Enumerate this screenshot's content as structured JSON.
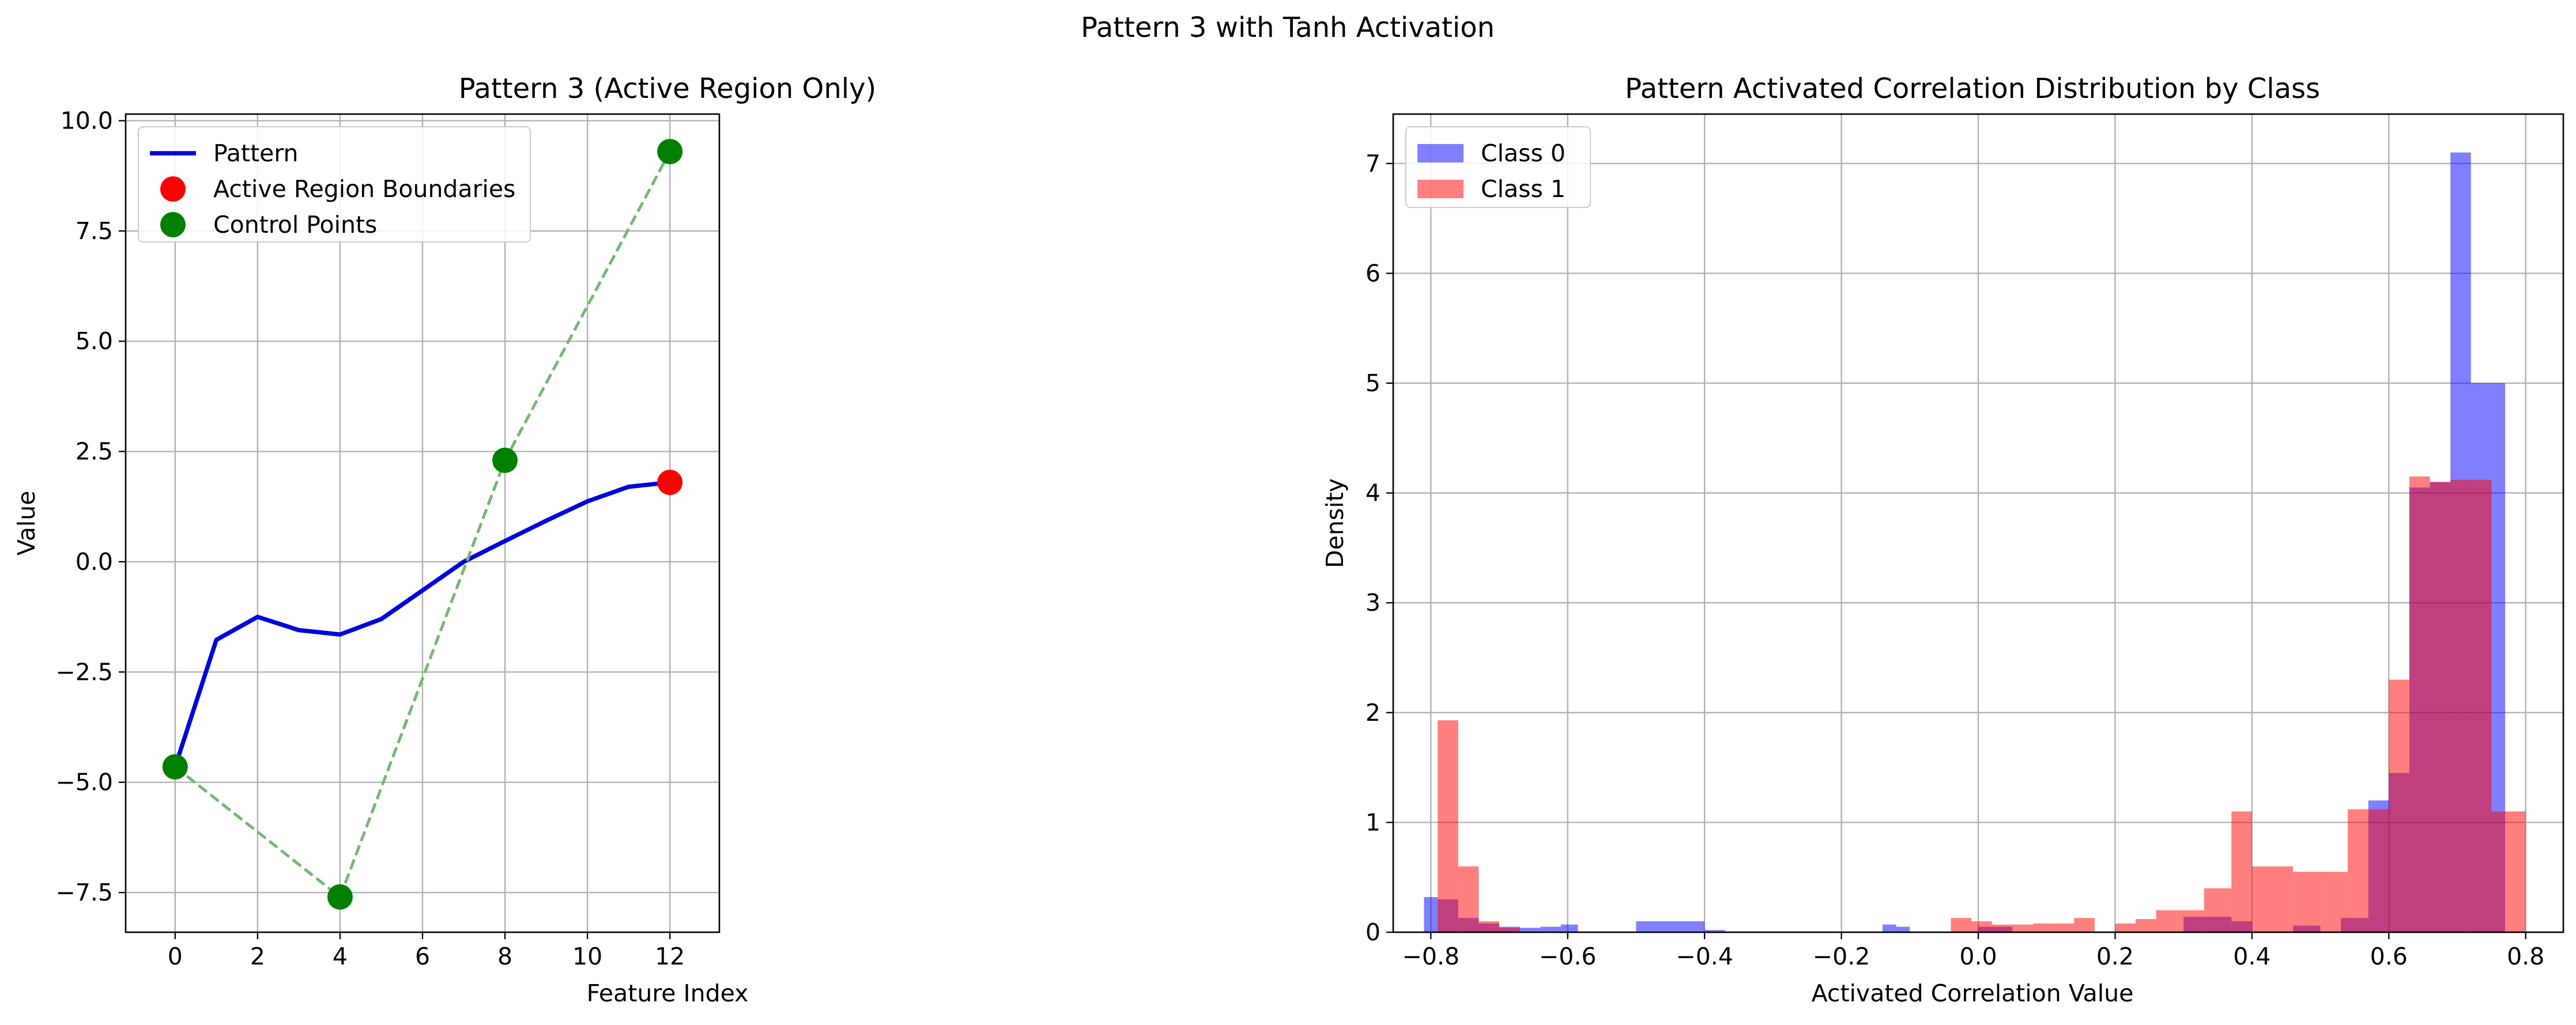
{
  "figure": {
    "suptitle": "Pattern 3 with Tanh Activation"
  },
  "chart_data": [
    {
      "type": "line",
      "title": "Pattern 3 (Active Region Only)",
      "xlabel": "Feature Index",
      "ylabel": "Value",
      "xlim": [
        -1.2,
        13.2
      ],
      "ylim": [
        -8.4,
        10.15
      ],
      "xticks": [
        0,
        2,
        4,
        6,
        8,
        10,
        12
      ],
      "yticks": [
        -7.5,
        -5.0,
        -2.5,
        0.0,
        2.5,
        5.0,
        7.5,
        10.0
      ],
      "xtick_labels": [
        "0",
        "2",
        "4",
        "6",
        "8",
        "10",
        "12"
      ],
      "ytick_labels": [
        "−7.5",
        "−5.0",
        "−2.5",
        "0.0",
        "2.5",
        "5.0",
        "7.5",
        "10.0"
      ],
      "grid": true,
      "legend_position": "upper-left",
      "series": [
        {
          "name": "Pattern",
          "kind": "line",
          "color": "#0000dd",
          "x": [
            0,
            1,
            2,
            3,
            4,
            5,
            6,
            7,
            8,
            9,
            10,
            11,
            12
          ],
          "y": [
            -4.65,
            -1.77,
            -1.25,
            -1.55,
            -1.65,
            -1.3,
            -0.65,
            0.0,
            0.47,
            0.93,
            1.37,
            1.7,
            1.8
          ]
        },
        {
          "name": "",
          "kind": "dashed-line",
          "color": "#73b873",
          "x": [
            0,
            4,
            8,
            12
          ],
          "y": [
            -4.65,
            -7.6,
            2.3,
            9.3
          ]
        },
        {
          "name": "Active Region Boundaries",
          "kind": "scatter",
          "color": "#ff0000",
          "x": [
            12
          ],
          "y": [
            1.8
          ]
        },
        {
          "name": "Control Points",
          "kind": "scatter",
          "color": "#008000",
          "x": [
            0,
            4,
            8,
            12
          ],
          "y": [
            -4.65,
            -7.6,
            2.3,
            9.3
          ]
        }
      ]
    },
    {
      "type": "histogram",
      "title": "Pattern Activated Correlation Distribution by Class",
      "xlabel": "Activated Correlation Value",
      "ylabel": "Density",
      "xlim": [
        -0.855,
        0.855
      ],
      "ylim": [
        0,
        7.45
      ],
      "xticks": [
        -0.8,
        -0.6,
        -0.4,
        -0.2,
        0.0,
        0.2,
        0.4,
        0.6,
        0.8
      ],
      "yticks": [
        0,
        1,
        2,
        3,
        4,
        5,
        6,
        7
      ],
      "xtick_labels": [
        "−0.8",
        "−0.6",
        "−0.4",
        "−0.2",
        "0.0",
        "0.2",
        "0.4",
        "0.6",
        "0.8"
      ],
      "ytick_labels": [
        "0",
        "1",
        "2",
        "3",
        "4",
        "5",
        "6",
        "7"
      ],
      "grid": true,
      "legend_position": "upper-left",
      "series": [
        {
          "name": "Class 0",
          "color": "#0000ff",
          "opacity": 0.5,
          "bins": [
            [
              -0.81,
              -0.79,
              0.32
            ],
            [
              -0.79,
              -0.76,
              0.3
            ],
            [
              -0.76,
              -0.73,
              0.13
            ],
            [
              -0.73,
              -0.7,
              0.08
            ],
            [
              -0.7,
              -0.67,
              0.05
            ],
            [
              -0.67,
              -0.64,
              0.04
            ],
            [
              -0.64,
              -0.61,
              0.05
            ],
            [
              -0.61,
              -0.585,
              0.07
            ],
            [
              -0.5,
              -0.45,
              0.1
            ],
            [
              -0.45,
              -0.4,
              0.1
            ],
            [
              -0.4,
              -0.37,
              0.02
            ],
            [
              -0.14,
              -0.12,
              0.07
            ],
            [
              -0.12,
              -0.1,
              0.05
            ],
            [
              0.0,
              0.05,
              0.05
            ],
            [
              0.3,
              0.33,
              0.14
            ],
            [
              0.33,
              0.37,
              0.14
            ],
            [
              0.37,
              0.4,
              0.1
            ],
            [
              0.46,
              0.5,
              0.06
            ],
            [
              0.53,
              0.57,
              0.13
            ],
            [
              0.57,
              0.6,
              1.2
            ],
            [
              0.6,
              0.63,
              1.45
            ],
            [
              0.63,
              0.66,
              4.05
            ],
            [
              0.66,
              0.69,
              4.1
            ],
            [
              0.69,
              0.72,
              7.1
            ],
            [
              0.72,
              0.74,
              5.0
            ],
            [
              0.74,
              0.77,
              5.0
            ]
          ]
        },
        {
          "name": "Class 1",
          "color": "#ff0000",
          "opacity": 0.5,
          "bins": [
            [
              -0.79,
              -0.76,
              1.93
            ],
            [
              -0.76,
              -0.73,
              0.6
            ],
            [
              -0.73,
              -0.7,
              0.1
            ],
            [
              -0.7,
              -0.67,
              0.04
            ],
            [
              -0.04,
              -0.01,
              0.13
            ],
            [
              -0.01,
              0.02,
              0.1
            ],
            [
              0.02,
              0.05,
              0.07
            ],
            [
              0.05,
              0.08,
              0.07
            ],
            [
              0.08,
              0.11,
              0.08
            ],
            [
              0.11,
              0.14,
              0.08
            ],
            [
              0.14,
              0.17,
              0.13
            ],
            [
              0.2,
              0.23,
              0.08
            ],
            [
              0.23,
              0.26,
              0.12
            ],
            [
              0.26,
              0.29,
              0.2
            ],
            [
              0.29,
              0.33,
              0.2
            ],
            [
              0.33,
              0.37,
              0.4
            ],
            [
              0.37,
              0.4,
              1.1
            ],
            [
              0.4,
              0.43,
              0.6
            ],
            [
              0.43,
              0.46,
              0.6
            ],
            [
              0.46,
              0.5,
              0.55
            ],
            [
              0.5,
              0.54,
              0.55
            ],
            [
              0.54,
              0.57,
              1.12
            ],
            [
              0.57,
              0.6,
              1.12
            ],
            [
              0.6,
              0.63,
              2.3
            ],
            [
              0.63,
              0.66,
              4.15
            ],
            [
              0.66,
              0.69,
              4.1
            ],
            [
              0.69,
              0.72,
              4.12
            ],
            [
              0.72,
              0.75,
              4.12
            ],
            [
              0.75,
              0.78,
              1.1
            ],
            [
              0.78,
              0.8,
              1.1
            ]
          ]
        }
      ]
    }
  ]
}
